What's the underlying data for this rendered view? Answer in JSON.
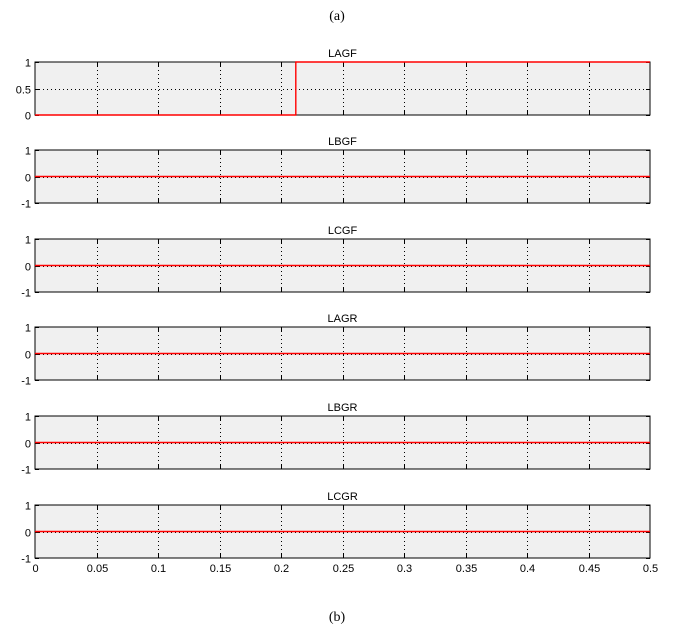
{
  "captions": {
    "top": "(a)",
    "bottom": "(b)"
  },
  "chart_data": [
    {
      "type": "line",
      "title": "LAGF",
      "xlim": [
        0,
        0.5
      ],
      "ylim": [
        0,
        1
      ],
      "yticks": [
        "0",
        "0.5",
        "1"
      ],
      "grid": true,
      "series": [
        {
          "x": [
            0,
            0.212,
            0.212,
            0.5
          ],
          "y": [
            0,
            0,
            1,
            1
          ],
          "color": "#ff0000"
        }
      ]
    },
    {
      "type": "line",
      "title": "LBGF",
      "xlim": [
        0,
        0.5
      ],
      "ylim": [
        -1,
        1
      ],
      "yticks": [
        "-1",
        "0",
        "1"
      ],
      "grid": true,
      "series": [
        {
          "x": [
            0,
            0.5
          ],
          "y": [
            0,
            0
          ],
          "color": "#ff0000"
        }
      ]
    },
    {
      "type": "line",
      "title": "LCGF",
      "xlim": [
        0,
        0.5
      ],
      "ylim": [
        -1,
        1
      ],
      "yticks": [
        "-1",
        "0",
        "1"
      ],
      "grid": true,
      "series": [
        {
          "x": [
            0,
            0.5
          ],
          "y": [
            0,
            0
          ],
          "color": "#ff0000"
        }
      ]
    },
    {
      "type": "line",
      "title": "LAGR",
      "xlim": [
        0,
        0.5
      ],
      "ylim": [
        -1,
        1
      ],
      "yticks": [
        "-1",
        "0",
        "1"
      ],
      "grid": true,
      "series": [
        {
          "x": [
            0,
            0.5
          ],
          "y": [
            0,
            0
          ],
          "color": "#ff0000"
        }
      ]
    },
    {
      "type": "line",
      "title": "LBGR",
      "xlim": [
        0,
        0.5
      ],
      "ylim": [
        -1,
        1
      ],
      "yticks": [
        "-1",
        "0",
        "1"
      ],
      "grid": true,
      "series": [
        {
          "x": [
            0,
            0.5
          ],
          "y": [
            0,
            0
          ],
          "color": "#ff0000"
        }
      ]
    },
    {
      "type": "line",
      "title": "LCGR",
      "xlim": [
        0,
        0.5
      ],
      "ylim": [
        -1,
        1
      ],
      "yticks": [
        "-1",
        "0",
        "1"
      ],
      "grid": true,
      "xticks": [
        "0",
        "0.05",
        "0.1",
        "0.15",
        "0.2",
        "0.25",
        "0.3",
        "0.35",
        "0.4",
        "0.45",
        "0.5"
      ],
      "series": [
        {
          "x": [
            0,
            0.5
          ],
          "y": [
            0,
            0
          ],
          "color": "#ff0000"
        }
      ]
    }
  ]
}
